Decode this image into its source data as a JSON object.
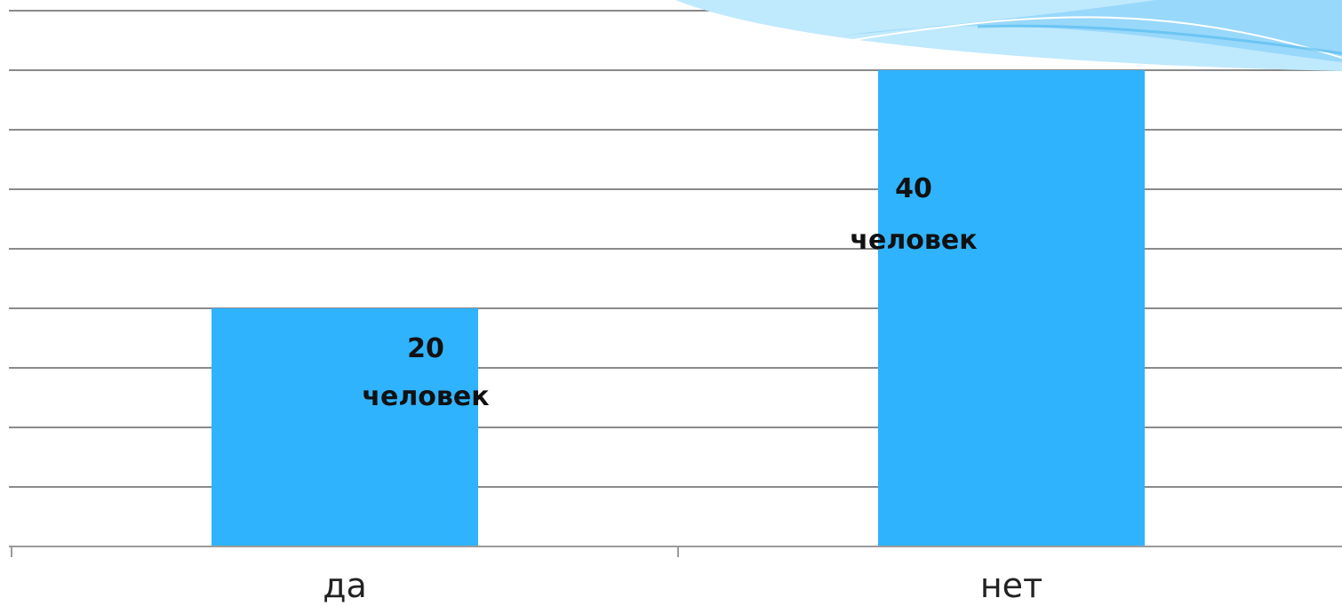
{
  "chart_data": {
    "type": "bar",
    "categories": [
      "да",
      "нет"
    ],
    "values": [
      20,
      40
    ],
    "data_labels": [
      [
        "20",
        "человек"
      ],
      [
        "40",
        "человек"
      ]
    ],
    "title": "",
    "xlabel": "",
    "ylabel": "",
    "ylim": [
      0,
      45
    ],
    "grid": true,
    "legend": "none",
    "bar_color": "#30b3fd"
  },
  "colors": {
    "decoration_light": "#bfe9fd",
    "decoration_mid": "#8fd3fa",
    "decoration_dark": "#59bdf0"
  }
}
